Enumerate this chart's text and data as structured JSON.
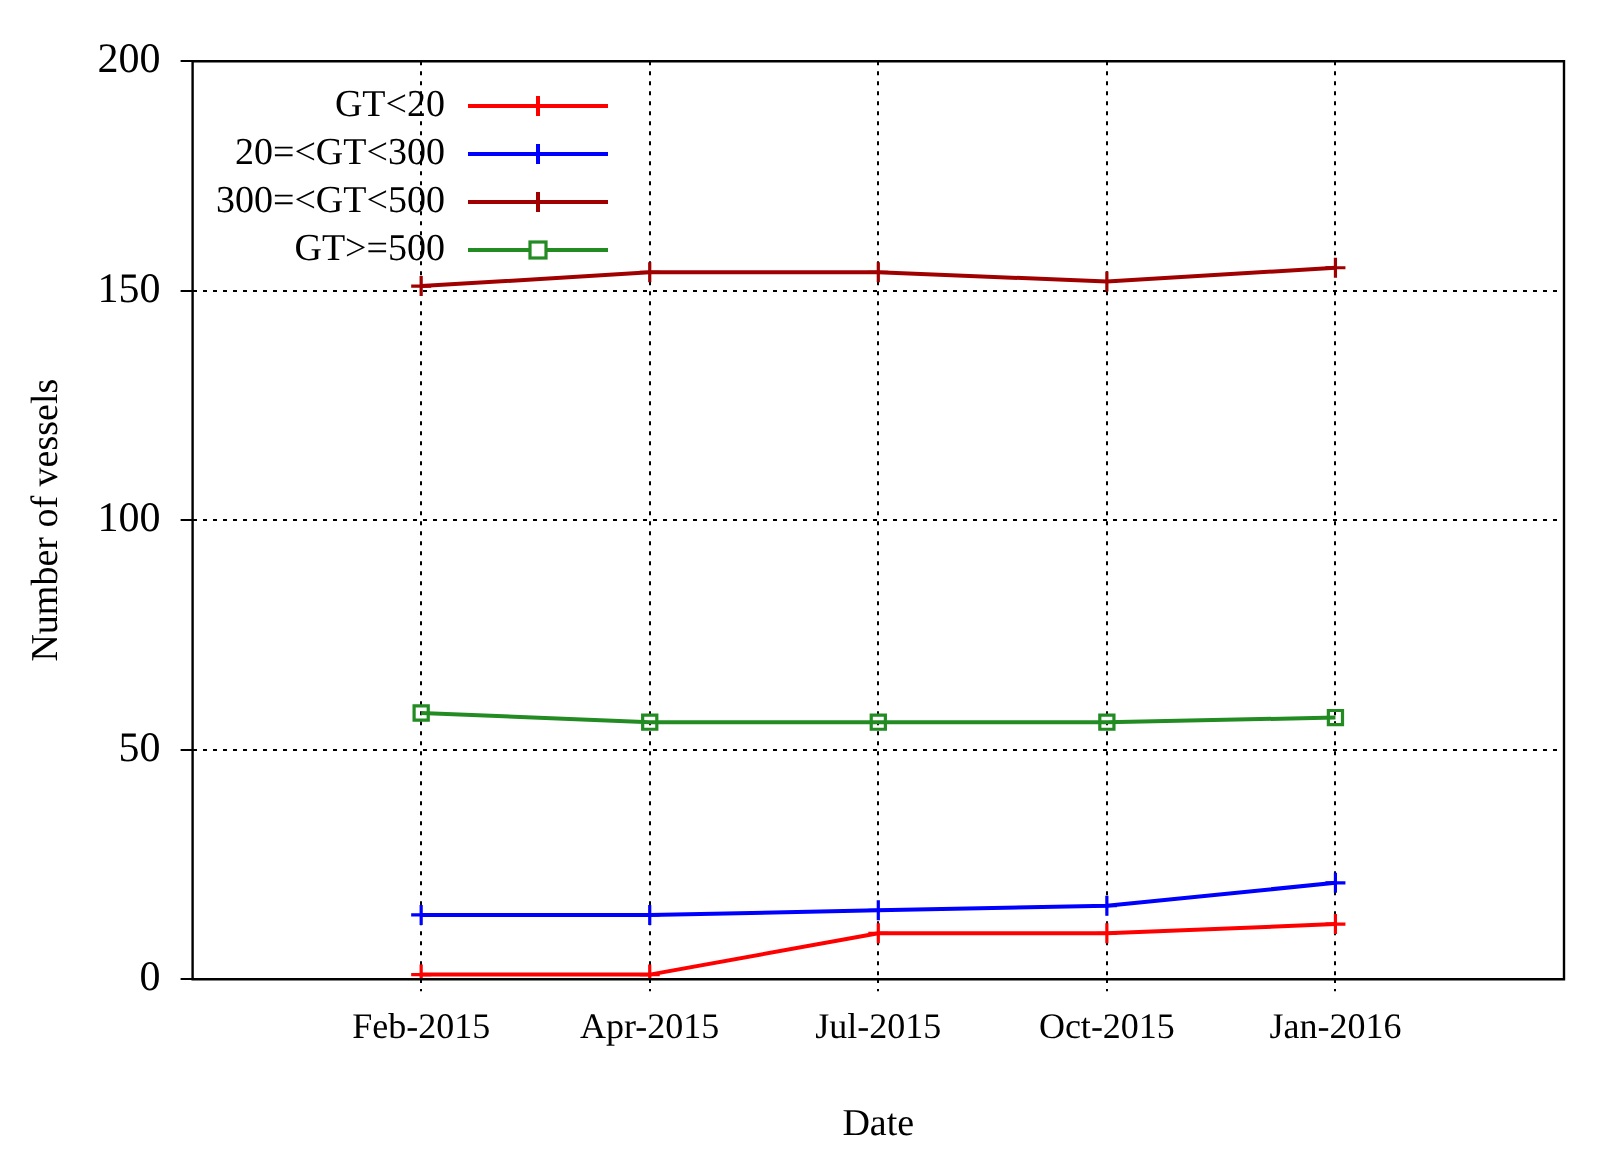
{
  "chart_data": {
    "type": "line",
    "xlabel": "Date",
    "ylabel": "Number of vessels",
    "categories": [
      "Feb-2015",
      "Apr-2015",
      "Jul-2015",
      "Oct-2015",
      "Jan-2016"
    ],
    "series": [
      {
        "name": "GT<20",
        "color": "#ff0000",
        "marker": "cross",
        "values": [
          1,
          1,
          10,
          10,
          12
        ]
      },
      {
        "name": "20=<GT<300",
        "color": "#0000ff",
        "marker": "cross",
        "values": [
          14,
          14,
          15,
          16,
          21
        ]
      },
      {
        "name": "300=<GT<500",
        "color": "#a00000",
        "marker": "cross",
        "values": [
          151,
          154,
          154,
          152,
          155
        ]
      },
      {
        "name": "GT>=500",
        "color": "#228b22",
        "marker": "square",
        "values": [
          58,
          56,
          56,
          56,
          57
        ]
      }
    ],
    "ylim": [
      0,
      200
    ],
    "yticks": [
      0,
      50,
      100,
      150,
      200
    ],
    "grid": true,
    "legend": "top left",
    "line_style": "solid"
  }
}
